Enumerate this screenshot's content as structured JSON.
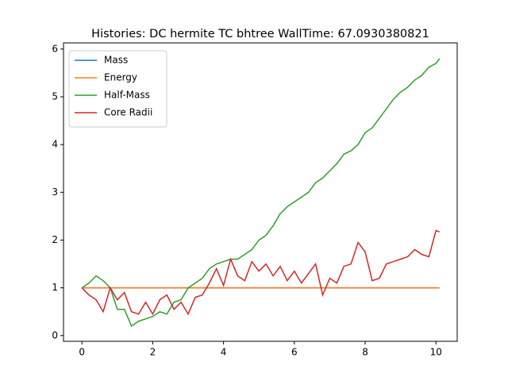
{
  "chart_data": {
    "type": "line",
    "title": "Histories: DC hermite TC bhtree WallTime: 67.0930380821",
    "x": [
      0,
      0.2,
      0.4,
      0.6,
      0.8,
      1.0,
      1.2,
      1.4,
      1.6,
      1.8,
      2.0,
      2.2,
      2.4,
      2.6,
      2.8,
      3.0,
      3.2,
      3.4,
      3.6,
      3.8,
      4.0,
      4.2,
      4.4,
      4.6,
      4.8,
      5.0,
      5.2,
      5.4,
      5.6,
      5.8,
      6.0,
      6.2,
      6.4,
      6.6,
      6.8,
      7.0,
      7.2,
      7.4,
      7.6,
      7.8,
      8.0,
      8.2,
      8.4,
      8.6,
      8.8,
      9.0,
      9.2,
      9.4,
      9.6,
      9.8,
      10.0,
      10.1
    ],
    "series": [
      {
        "name": "Mass",
        "color": "#1f77b4",
        "values": [
          1,
          1,
          1,
          1,
          1,
          1,
          1,
          1,
          1,
          1,
          1,
          1,
          1,
          1,
          1,
          1,
          1,
          1,
          1,
          1,
          1,
          1,
          1,
          1,
          1,
          1,
          1,
          1,
          1,
          1,
          1,
          1,
          1,
          1,
          1,
          1,
          1,
          1,
          1,
          1,
          1,
          1,
          1,
          1,
          1,
          1,
          1,
          1,
          1,
          1,
          1,
          1
        ]
      },
      {
        "name": "Energy",
        "color": "#ff7f0e",
        "values": [
          1,
          1,
          1,
          1,
          1,
          1,
          1,
          1,
          1,
          1,
          1,
          1,
          1,
          1,
          1,
          1,
          1,
          1,
          1,
          1,
          1,
          1,
          1,
          1,
          1,
          1,
          1,
          1,
          1,
          1,
          1,
          1,
          1,
          1,
          1,
          1,
          1,
          1,
          1,
          1,
          1,
          1,
          1,
          1,
          1,
          1,
          1,
          1,
          1,
          1,
          1,
          1
        ]
      },
      {
        "name": "Half-Mass",
        "color": "#2ca02c",
        "values": [
          1.0,
          1.1,
          1.25,
          1.15,
          1.0,
          0.55,
          0.55,
          0.2,
          0.3,
          0.35,
          0.4,
          0.5,
          0.45,
          0.7,
          0.75,
          1.0,
          1.1,
          1.2,
          1.4,
          1.5,
          1.55,
          1.6,
          1.6,
          1.7,
          1.8,
          2.0,
          2.1,
          2.3,
          2.55,
          2.7,
          2.8,
          2.9,
          3.0,
          3.2,
          3.3,
          3.45,
          3.6,
          3.8,
          3.87,
          4.0,
          4.25,
          4.35,
          4.55,
          4.75,
          4.95,
          5.1,
          5.2,
          5.35,
          5.45,
          5.62,
          5.7,
          5.8
        ]
      },
      {
        "name": "Core Radii",
        "color": "#d62728",
        "values": [
          1.0,
          0.85,
          0.75,
          0.5,
          1.0,
          0.75,
          0.9,
          0.5,
          0.45,
          0.7,
          0.45,
          0.75,
          0.85,
          0.55,
          0.7,
          0.45,
          0.8,
          0.85,
          1.1,
          1.4,
          1.05,
          1.6,
          1.25,
          1.15,
          1.55,
          1.35,
          1.5,
          1.25,
          1.45,
          1.15,
          1.35,
          1.1,
          1.3,
          1.5,
          0.85,
          1.2,
          1.1,
          1.45,
          1.5,
          1.95,
          1.75,
          1.15,
          1.2,
          1.5,
          1.55,
          1.6,
          1.65,
          1.8,
          1.7,
          1.65,
          2.2,
          2.17
        ]
      }
    ],
    "xlim": [
      -0.52,
      10.6
    ],
    "ylim": [
      -0.12,
      6.13
    ],
    "xticks": [
      0,
      2,
      4,
      6,
      8,
      10
    ],
    "yticks": [
      0,
      1,
      2,
      3,
      4,
      5,
      6
    ],
    "legend": "upper left"
  }
}
